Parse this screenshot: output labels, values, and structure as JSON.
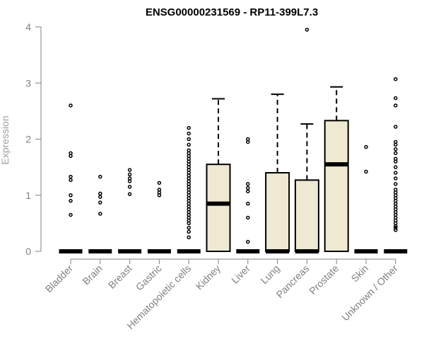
{
  "chart_data": {
    "type": "boxplot",
    "title": "ENSG00000231569 - RP11-399L7.3",
    "xlabel": "",
    "ylabel": "Expression",
    "ylim": [
      0,
      4
    ],
    "yticks": [
      0,
      1,
      2,
      3,
      4
    ],
    "grid": false,
    "box_fill": "#efe8d2",
    "box_stroke": "#000000",
    "axis_color": "#808080",
    "categories": [
      "Bladder",
      "Brain",
      "Breast",
      "Gastric",
      "Hematopoietic cells",
      "Kidney",
      "Liver",
      "Lung",
      "Pancreas",
      "Prostate",
      "Skin",
      "Unknown / Other"
    ],
    "boxes": [
      {
        "q1": 0,
        "median": 0,
        "q3": 0,
        "whisker_low": 0,
        "whisker_high": 0,
        "outliers": [
          0.65,
          0.9,
          1.0,
          1.27,
          1.33,
          1.7,
          1.75,
          2.6
        ]
      },
      {
        "q1": 0,
        "median": 0,
        "q3": 0,
        "whisker_low": 0,
        "whisker_high": 0,
        "outliers": [
          0.67,
          0.87,
          0.97,
          1.03,
          1.33
        ]
      },
      {
        "q1": 0,
        "median": 0,
        "q3": 0,
        "whisker_low": 0,
        "whisker_high": 0,
        "outliers": [
          1.02,
          1.15,
          1.25,
          1.3,
          1.37,
          1.45
        ]
      },
      {
        "q1": 0,
        "median": 0,
        "q3": 0,
        "whisker_low": 0,
        "whisker_high": 0,
        "outliers": [
          1.0,
          1.05,
          1.1,
          1.22
        ]
      },
      {
        "q1": 0,
        "median": 0,
        "q3": 0,
        "whisker_low": 0,
        "whisker_high": 0,
        "outliers": [
          0.25,
          0.35,
          0.42,
          0.5,
          0.55,
          0.6,
          0.65,
          0.7,
          0.75,
          0.8,
          0.85,
          0.9,
          0.95,
          1.0,
          1.05,
          1.1,
          1.15,
          1.2,
          1.25,
          1.3,
          1.35,
          1.4,
          1.45,
          1.5,
          1.55,
          1.6,
          1.65,
          1.7,
          1.75,
          1.8,
          1.9,
          2.0,
          2.1,
          2.2
        ]
      },
      {
        "q1": 0,
        "median": 0.85,
        "q3": 1.55,
        "whisker_low": 0,
        "whisker_high": 2.72,
        "outliers": []
      },
      {
        "q1": 0,
        "median": 0,
        "q3": 0,
        "whisker_low": 0,
        "whisker_high": 0,
        "outliers": [
          0.17,
          0.6,
          0.85,
          1.07,
          1.13,
          1.2,
          1.95,
          2.0
        ]
      },
      {
        "q1": 0,
        "median": 0,
        "q3": 1.4,
        "whisker_low": 0,
        "whisker_high": 2.8,
        "outliers": []
      },
      {
        "q1": 0,
        "median": 0,
        "q3": 1.27,
        "whisker_low": 0,
        "whisker_high": 2.27,
        "outliers": [
          3.95
        ]
      },
      {
        "q1": 0,
        "median": 1.55,
        "q3": 2.33,
        "whisker_low": 0,
        "whisker_high": 2.93,
        "outliers": []
      },
      {
        "q1": 0,
        "median": 0,
        "q3": 0,
        "whisker_low": 0,
        "whisker_high": 0,
        "outliers": [
          1.42,
          1.86
        ]
      },
      {
        "q1": 0,
        "median": 0,
        "q3": 0,
        "whisker_low": 0,
        "whisker_high": 0,
        "outliers": [
          0.38,
          0.42,
          0.45,
          0.5,
          0.55,
          0.6,
          0.65,
          0.7,
          0.75,
          0.8,
          0.85,
          0.9,
          0.95,
          1.0,
          1.05,
          1.1,
          1.2,
          1.3,
          1.4,
          1.5,
          1.6,
          1.65,
          1.75,
          1.82,
          1.9,
          1.95,
          2.22,
          2.6,
          2.73,
          3.07
        ]
      }
    ]
  }
}
